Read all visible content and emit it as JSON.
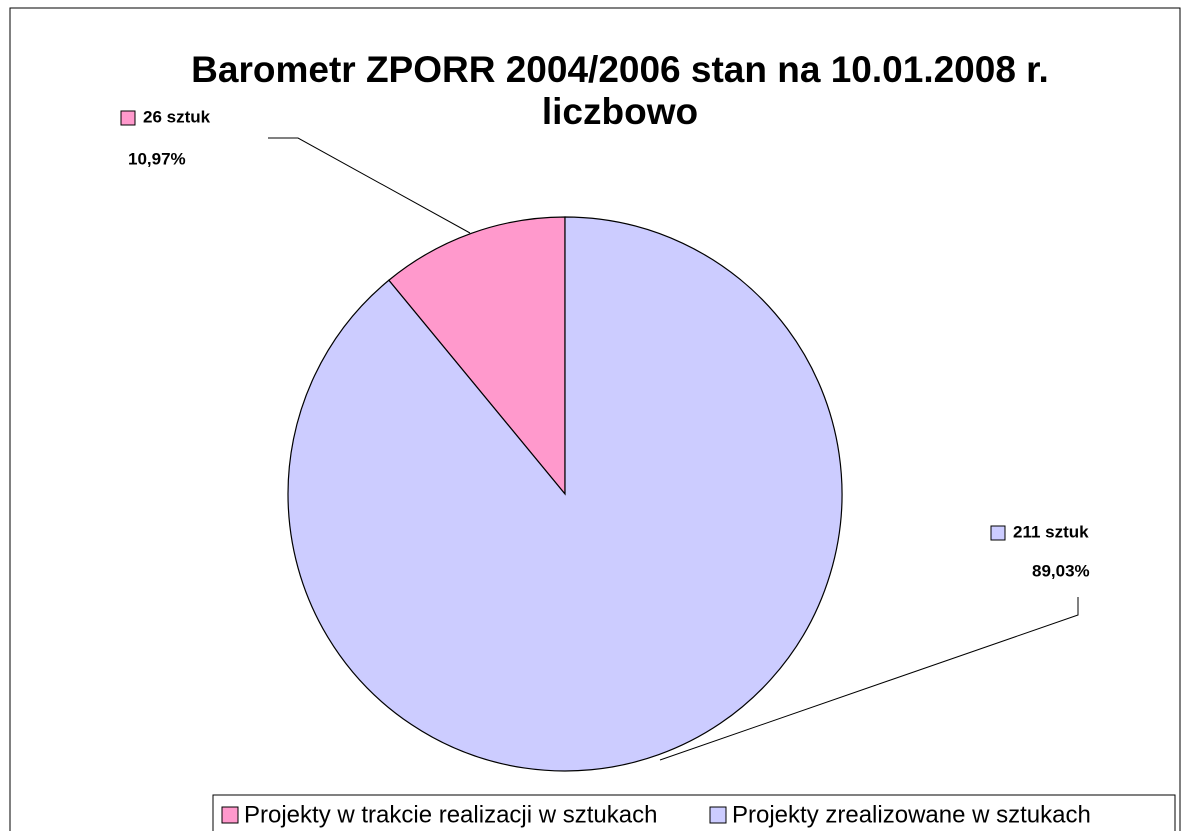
{
  "chart_data": {
    "type": "pie",
    "title": [
      "Barometr ZPORR 2004/2006 stan na 10.01.2008 r.",
      "liczbowo"
    ],
    "categories": [
      "Projekty w trakcie realizacji w sztukach",
      "Projekty zrealizowane w sztukach"
    ],
    "values": [
      26,
      211
    ],
    "value_labels": [
      "26 sztuk",
      "211 sztuk"
    ],
    "percents": [
      10.97,
      89.03
    ],
    "percent_labels": [
      "10,97%",
      "89,03%"
    ],
    "colors": [
      "#ff99cc",
      "#ccccff"
    ],
    "legend": "bottom"
  }
}
